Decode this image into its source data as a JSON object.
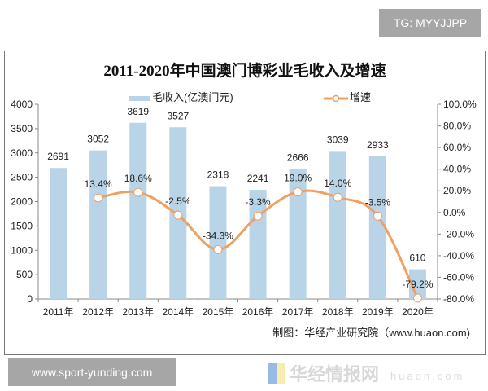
{
  "overlays": {
    "top_right": "TG: MYYJJPP",
    "bottom_left": "www.sport-yunding.com"
  },
  "watermark": {
    "logo": "华经情报网",
    "domain": "huaon.com"
  },
  "chart_data": {
    "type": "bar+line",
    "title": "2011-2020年中国澳门博彩业毛收入及增速",
    "categories": [
      "2011年",
      "2012年",
      "2013年",
      "2014年",
      "2015年",
      "2016年",
      "2017年",
      "2018年",
      "2019年",
      "2020年"
    ],
    "series": [
      {
        "name": "毛收入(亿澳门元)",
        "type": "bar",
        "axis": "left",
        "color": "#b8d4e6",
        "values": [
          2691,
          3052,
          3619,
          3527,
          2318,
          2241,
          2666,
          3039,
          2933,
          610
        ],
        "labels": [
          "2691",
          "3052",
          "3619",
          "3527",
          "2318",
          "2241",
          "2666",
          "3039",
          "2933",
          "610"
        ]
      },
      {
        "name": "增速",
        "type": "line",
        "axis": "right",
        "color": "#f0a060",
        "smooth": true,
        "values": [
          null,
          13.4,
          18.6,
          -2.5,
          -34.3,
          -3.3,
          19.0,
          14.0,
          -3.5,
          -79.2
        ],
        "labels": [
          "",
          "13.4%",
          "18.6%",
          "-2.5%",
          "-34.3%",
          "-3.3%",
          "19.0%",
          "14.0%",
          "-3.5%",
          "-79.2%"
        ]
      }
    ],
    "y_left": {
      "range": [
        0,
        4000
      ],
      "ticks": [
        "0",
        "500",
        "1000",
        "1500",
        "2000",
        "2500",
        "3000",
        "3500",
        "4000"
      ]
    },
    "y_right": {
      "range": [
        -80,
        100
      ],
      "ticks": [
        "-80.0%",
        "-60.0%",
        "-40.0%",
        "-20.0%",
        "0.0%",
        "20.0%",
        "40.0%",
        "60.0%",
        "80.0%",
        "100.0%"
      ]
    },
    "grid": false,
    "legend": "top",
    "source": "制图：华经产业研究院（www.huaon.com)"
  }
}
